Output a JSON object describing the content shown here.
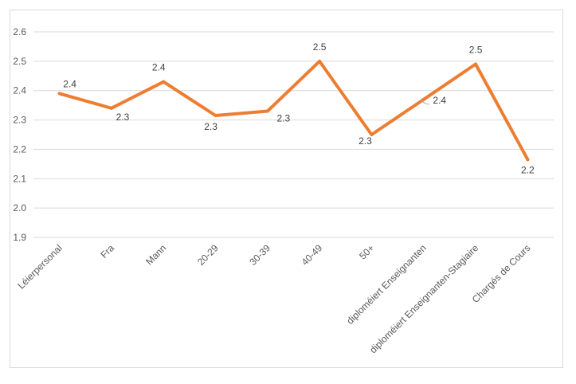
{
  "chart_data": {
    "type": "line",
    "title": "",
    "xlabel": "",
    "ylabel": "",
    "ylim": [
      1.9,
      2.6
    ],
    "yticks": [
      "1.9",
      "2.0",
      "2.1",
      "2.2",
      "2.3",
      "2.4",
      "2.5",
      "2.6"
    ],
    "grid": true,
    "categories": [
      "Léierpersonal",
      "Fra",
      "Mann",
      "20-29",
      "30-39",
      "40-49",
      "50+",
      "diploméiert Enseignanten",
      "diploméiert Enseignanten-Stagiaire",
      "Chargés de Cours"
    ],
    "series": [
      {
        "name": "",
        "color": "#ED7D31",
        "values": [
          2.39,
          2.34,
          2.43,
          2.315,
          2.33,
          2.5,
          2.25,
          2.37,
          2.49,
          2.165
        ],
        "labels": [
          "2.4",
          "2.3",
          "2.4",
          "2.3",
          "2.3",
          "2.5",
          "2.3",
          "2.4",
          "2.5",
          "2.2"
        ]
      }
    ]
  }
}
